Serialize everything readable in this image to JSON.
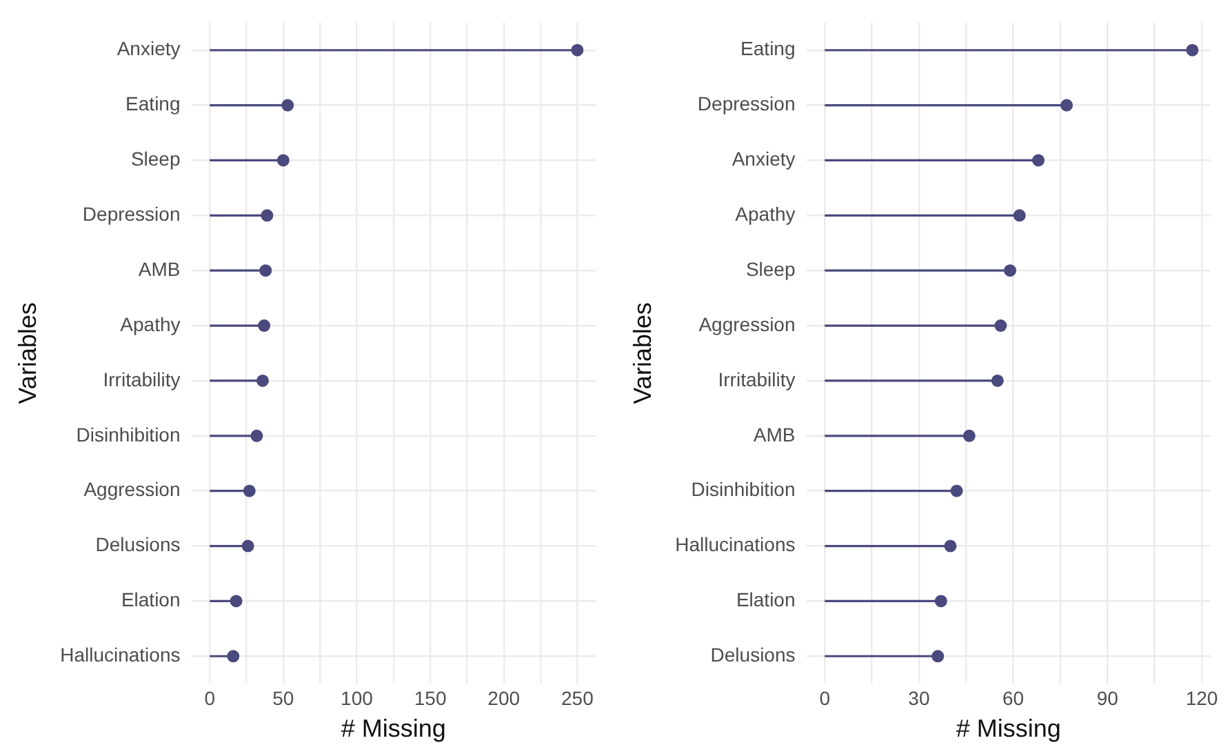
{
  "chart_data": [
    {
      "type": "lollipop",
      "orientation": "horizontal",
      "xlabel": "# Missing",
      "ylabel": "Variables",
      "categories": [
        "Anxiety",
        "Eating",
        "Sleep",
        "Depression",
        "AMB",
        "Apathy",
        "Irritability",
        "Disinhibition",
        "Aggression",
        "Delusions",
        "Elation",
        "Hallucinations"
      ],
      "values": [
        250,
        53,
        50,
        39,
        38,
        37,
        36,
        32,
        27,
        26,
        18,
        16
      ],
      "color": "#4a4a7e",
      "xlim": [
        -12.5,
        262.5
      ],
      "xticks": [
        0,
        {
          "value": 25,
          "label": null
        },
        50,
        {
          "value": 75,
          "label": null
        },
        100,
        {
          "value": 125,
          "label": null
        },
        150,
        {
          "value": 175,
          "label": null
        },
        200,
        {
          "value": 225,
          "label": null
        },
        250
      ],
      "grid": true,
      "marker": "circle"
    },
    {
      "type": "lollipop",
      "orientation": "horizontal",
      "xlabel": "# Missing",
      "ylabel": "Variables",
      "categories": [
        "Eating",
        "Depression",
        "Anxiety",
        "Apathy",
        "Sleep",
        "Aggression",
        "Irritability",
        "AMB",
        "Disinhibition",
        "Hallucinations",
        "Elation",
        "Delusions"
      ],
      "values": [
        117,
        77,
        68,
        62,
        59,
        56,
        55,
        46,
        42,
        40,
        37,
        36
      ],
      "color": "#4a4a7e",
      "xlim": [
        -5.85,
        122.85
      ],
      "xticks": [
        0,
        {
          "value": 15,
          "label": null
        },
        30,
        {
          "value": 45,
          "label": null
        },
        60,
        {
          "value": 75,
          "label": null
        },
        90,
        {
          "value": 105,
          "label": null
        },
        120
      ],
      "grid": true,
      "marker": "circle"
    }
  ]
}
